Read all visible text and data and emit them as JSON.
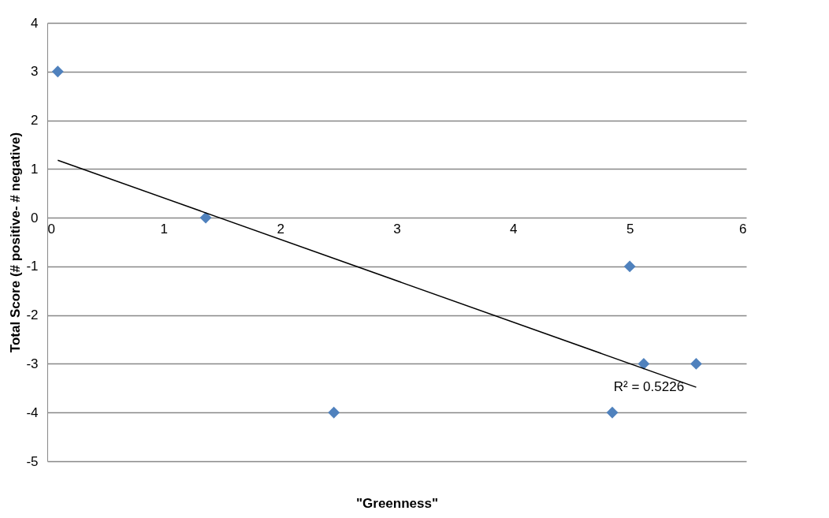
{
  "chart_data": {
    "type": "scatter",
    "xlabel": "\"Greenness\"",
    "ylabel": "Total Score (# positive- # negative)",
    "series": [
      {
        "color": "#4f81bd",
        "marker": "diamond",
        "x": [
          0.09,
          1.36,
          2.46,
          4.85,
          5.0,
          5.12,
          5.57
        ],
        "values": [
          3,
          0,
          -4,
          -4,
          -1,
          -3,
          -3
        ]
      },
      {
        "type": "line",
        "color": "#000000",
        "marker": "none",
        "x": [
          0.09,
          5.57
        ],
        "values": [
          1.18,
          -3.48
        ]
      }
    ],
    "annotations": [
      "R² = 0.5226"
    ],
    "xlim": [
      0,
      6
    ],
    "xticks": [
      0,
      1,
      2,
      3,
      4,
      5,
      6
    ],
    "ylim": [
      -5,
      4
    ],
    "yticks": [
      -5,
      -4,
      -3,
      -2,
      -1,
      0,
      1,
      2,
      3,
      4
    ],
    "grid": "y"
  }
}
